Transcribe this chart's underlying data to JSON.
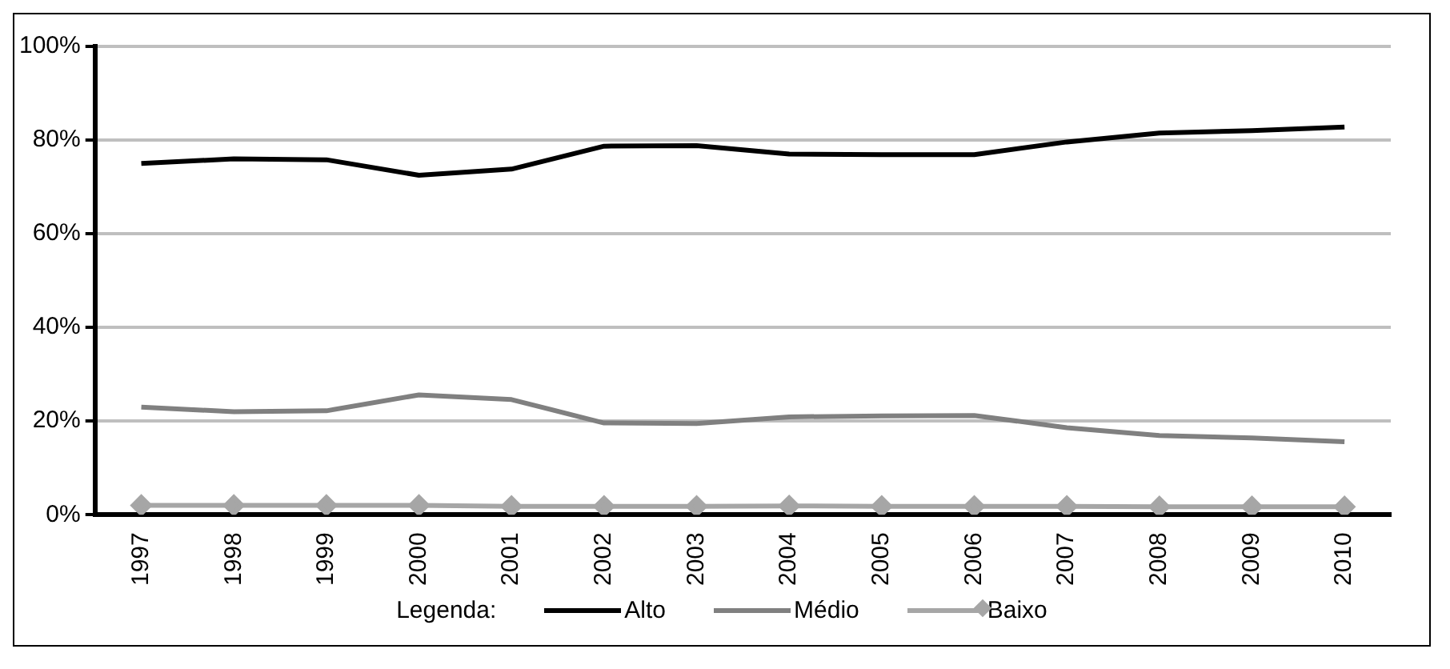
{
  "chart_data": {
    "type": "line",
    "categories": [
      "1997",
      "1998",
      "1999",
      "2000",
      "2001",
      "2002",
      "2003",
      "2004",
      "2005",
      "2006",
      "2007",
      "2008",
      "2009",
      "2010"
    ],
    "series": [
      {
        "name": "Alto",
        "color": "#000000",
        "marker": "none",
        "values": [
          75,
          76,
          75.8,
          72.5,
          73.8,
          78.7,
          78.8,
          77,
          76.9,
          76.9,
          79.6,
          81.5,
          82,
          82.8
        ]
      },
      {
        "name": "Médio",
        "color": "#808080",
        "marker": "none",
        "values": [
          23,
          22,
          22.2,
          25.6,
          24.6,
          19.6,
          19.5,
          20.9,
          21.1,
          21.2,
          18.6,
          16.9,
          16.4,
          15.6
        ]
      },
      {
        "name": "Baixo",
        "color": "#a6a6a6",
        "marker": "diamond",
        "values": [
          2,
          2,
          2,
          2,
          1.8,
          1.8,
          1.8,
          1.9,
          1.8,
          1.8,
          1.8,
          1.7,
          1.7,
          1.7
        ]
      }
    ],
    "ylim": [
      0,
      100
    ],
    "yticks": [
      {
        "value": 0,
        "label": "0%"
      },
      {
        "value": 20,
        "label": "20%"
      },
      {
        "value": 40,
        "label": "40%"
      },
      {
        "value": 60,
        "label": "60%"
      },
      {
        "value": 80,
        "label": "80%"
      },
      {
        "value": 100,
        "label": "100%"
      }
    ],
    "grid": "y",
    "legend": "bottom",
    "legend_title": "Legenda:"
  }
}
